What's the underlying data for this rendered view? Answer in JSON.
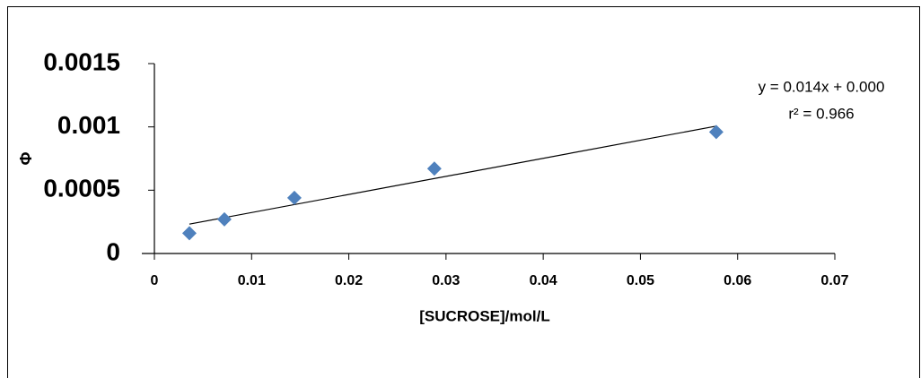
{
  "chart_data": {
    "type": "scatter",
    "x_label": "[SUCROSE]/mol/L",
    "y_label": "Φ",
    "equation": "y = 0.014x + 0.000",
    "r_squared": "r² = 0.966",
    "x": [
      0.0036,
      0.0072,
      0.0144,
      0.0288,
      0.0578
    ],
    "values": [
      0.00016,
      0.00027,
      0.00044,
      0.00067,
      0.00096
    ],
    "color": "#4f81bd",
    "xlim": [
      0,
      0.07
    ],
    "xticks": [
      0,
      0.01,
      0.02,
      0.03,
      0.04,
      0.05,
      0.06,
      0.07
    ],
    "ylim": [
      0,
      0.0015
    ],
    "yticks": [
      0,
      0.0005,
      0.001,
      0.0015
    ],
    "trendline": true
  }
}
